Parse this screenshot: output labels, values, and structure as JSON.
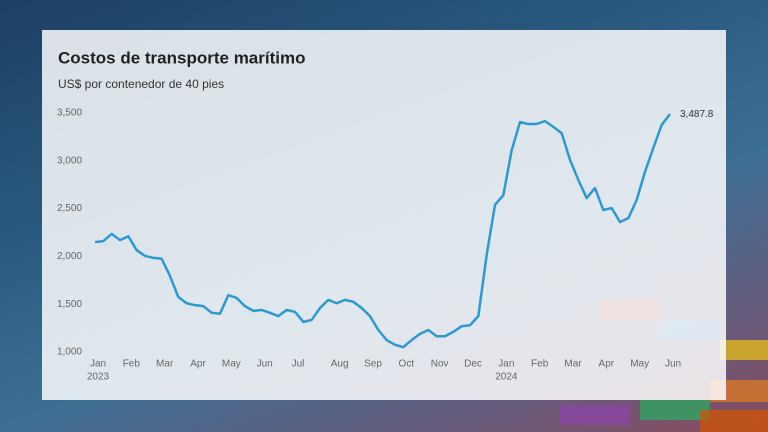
{
  "chart_data": {
    "type": "line",
    "title": "Costos de transporte marítimo",
    "subtitle": "US$ por contenedor de 40 pies",
    "categories": [
      "Jan",
      null,
      null,
      null,
      "Feb",
      null,
      null,
      null,
      "Mar",
      null,
      null,
      null,
      "Apr",
      null,
      null,
      null,
      "May",
      null,
      null,
      null,
      "Jun",
      null,
      null,
      null,
      "Jul",
      null,
      null,
      null,
      null,
      "Aug",
      null,
      null,
      null,
      "Sep",
      null,
      null,
      null,
      "Oct",
      null,
      null,
      null,
      "Nov",
      null,
      null,
      null,
      "Dec",
      null,
      null,
      null,
      "Jan",
      null,
      null,
      null,
      "Feb",
      null,
      null,
      null,
      "Mar",
      null,
      null,
      null,
      "Apr",
      null,
      null,
      null,
      "May",
      null,
      null,
      null,
      "Jun"
    ],
    "year_labels": [
      "2023",
      null,
      null,
      null,
      null,
      null,
      null,
      null,
      null,
      null,
      null,
      null,
      null,
      null,
      null,
      null,
      null,
      null,
      null,
      null,
      null,
      null,
      null,
      null,
      null,
      null,
      null,
      null,
      null,
      null,
      null,
      null,
      null,
      null,
      null,
      null,
      null,
      null,
      null,
      null,
      null,
      null,
      null,
      null,
      null,
      null,
      null,
      null,
      null,
      "2024",
      null,
      null,
      null,
      null,
      null,
      null,
      null,
      null,
      null,
      null,
      null,
      null,
      null,
      null,
      null,
      null,
      null,
      null,
      null,
      null
    ],
    "values": [
      2150,
      2160,
      2235,
      2170,
      2210,
      2065,
      2005,
      1985,
      1975,
      1795,
      1575,
      1510,
      1490,
      1480,
      1410,
      1400,
      1595,
      1565,
      1480,
      1430,
      1440,
      1410,
      1375,
      1440,
      1420,
      1315,
      1335,
      1460,
      1545,
      1510,
      1545,
      1525,
      1460,
      1375,
      1230,
      1125,
      1075,
      1050,
      1125,
      1190,
      1230,
      1165,
      1165,
      1210,
      1270,
      1280,
      1375,
      2015,
      2540,
      2640,
      3110,
      3405,
      3385,
      3385,
      3415,
      3355,
      3290,
      3010,
      2800,
      2610,
      2715,
      2485,
      2505,
      2360,
      2400,
      2590,
      2885,
      3135,
      3375,
      3487.8
    ],
    "value_labels": [
      null,
      null,
      null,
      null,
      null,
      null,
      null,
      null,
      null,
      null,
      null,
      null,
      null,
      null,
      null,
      null,
      null,
      null,
      null,
      null,
      null,
      null,
      null,
      null,
      null,
      null,
      null,
      null,
      null,
      null,
      null,
      null,
      null,
      null,
      null,
      null,
      null,
      null,
      null,
      null,
      null,
      null,
      null,
      null,
      null,
      null,
      null,
      null,
      null,
      null,
      null,
      null,
      null,
      null,
      null,
      null,
      null,
      null,
      null,
      null,
      null,
      null,
      null,
      null,
      null,
      null,
      null,
      null,
      null,
      "3,487.8"
    ],
    "color": "#2b9ad2",
    "ylim": [
      1000,
      3500
    ],
    "yticks": [
      {
        "value": 1000,
        "label": "1,000"
      },
      {
        "value": 1500,
        "label": "1,500"
      },
      {
        "value": 2000,
        "label": "2,000"
      },
      {
        "value": 2500,
        "label": "2,500"
      },
      {
        "value": 3000,
        "label": "3,000"
      },
      {
        "value": 3500,
        "label": "3,500"
      }
    ],
    "grid": false
  }
}
